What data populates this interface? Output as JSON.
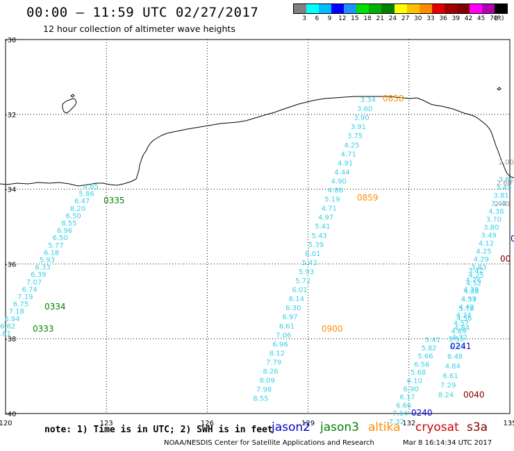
{
  "header": {
    "title": "00:00 – 11:59 UTC 02/27/2017",
    "subtitle": "12 hour collection of altimeter wave heights"
  },
  "colorbar": {
    "unit_label": "(ft)",
    "colors": [
      "#808080",
      "#00ffff",
      "#00bfff",
      "#0000ff",
      "#1e90ff",
      "#00e000",
      "#00b000",
      "#008000",
      "#ffff00",
      "#ffc000",
      "#ff8c00",
      "#e00000",
      "#a00000",
      "#800000",
      "#ff00ff",
      "#b000b0",
      "#000000"
    ],
    "tick_labels": [
      "3",
      "6",
      "9",
      "12",
      "15",
      "18",
      "21",
      "24",
      "27",
      "30",
      "33",
      "36",
      "39",
      "42",
      "45",
      "70"
    ]
  },
  "map": {
    "lon_labels": [
      "120",
      "123",
      "126",
      "129",
      "132",
      "135"
    ],
    "lat_labels": [
      "-30",
      "-32",
      "-34",
      "-36",
      "-38",
      "-40"
    ],
    "lon_range": [
      120,
      135
    ],
    "lat_range": [
      -40,
      -30
    ]
  },
  "tracks": {
    "track_0335": {
      "color": "#35d0e8",
      "values": [
        "4.85",
        "5.86",
        "6.47",
        "8.20",
        "6.50",
        "8.55",
        "6.96",
        "6.50",
        "5.77",
        "6.18",
        "5.93",
        "6.33",
        "6.39",
        "7.07",
        "6.74",
        "7.19",
        "6.75",
        "7.18",
        "6.94",
        "6.62",
        "6.61"
      ]
    },
    "track_0858": {
      "color": "#35d0e8",
      "values": [
        "3.34",
        "3.60",
        "3.90",
        "3.91",
        "3.75",
        "4.25",
        "4.71",
        "4.91",
        "4.44",
        "4.90",
        "4.88",
        "5.19",
        "4.71",
        "4.97",
        "5.41",
        "5.43",
        "5.39",
        "6.01",
        "5.42",
        "5.93",
        "5.72",
        "6.01",
        "6.14",
        "6.30",
        "6.97",
        "6.61",
        "7.06",
        "6.96",
        "8.12",
        "7.79",
        "8.26",
        "8.09",
        "7.98",
        "8.55"
      ]
    },
    "track_0241": {
      "color": "#35d0e8",
      "values": [
        "5.41",
        "5.82",
        "5.66",
        "6.56",
        "5.68",
        "6.10",
        "6.90",
        "6.17",
        "6.66",
        "7.14",
        "7.32"
      ]
    },
    "track_0040": {
      "color": "#35d0e8",
      "values": [
        "3.42",
        "4.76",
        "4.29",
        "4.37",
        "5.78",
        "4.56",
        "4.84",
        "4.72",
        "6.07",
        "6.48",
        "4.84",
        "6.61",
        "7.29",
        "8.24"
      ]
    },
    "track_east": {
      "color": "#35d0e8",
      "values": [
        "3.81",
        "3.45",
        "3.81",
        "3.43",
        "4.36",
        "3.70",
        "3.80",
        "3.49",
        "4.12",
        "4.25",
        "4.29",
        "3.83",
        "4.25",
        "4.52",
        "4.38",
        "4.59",
        "4.42",
        "4.34",
        "4.57",
        "4.69",
        "5.53"
      ]
    },
    "track_east_gray": {
      "color": "#999999",
      "values": [
        "2.00",
        "2.60",
        "2.40"
      ]
    }
  },
  "time_labels": [
    {
      "text": "0335",
      "color": "#008000"
    },
    {
      "text": "0334",
      "color": "#008000"
    },
    {
      "text": "0333",
      "color": "#008000"
    },
    {
      "text": "0858",
      "color": "#ff8c00"
    },
    {
      "text": "0859",
      "color": "#ff8c00"
    },
    {
      "text": "0900",
      "color": "#ff8c00"
    },
    {
      "text": "0241",
      "color": "#0000cc"
    },
    {
      "text": "0240",
      "color": "#0000cc"
    },
    {
      "text": "0040",
      "color": "#800000"
    },
    {
      "text": "0",
      "color": "#0000cc"
    },
    {
      "text": "00",
      "color": "#800000"
    }
  ],
  "footer": {
    "note": "note: 1) Time is in UTC; 2) SWH is in feet",
    "legend": [
      {
        "name": "jason2",
        "color": "#0000cc"
      },
      {
        "name": "jason3",
        "color": "#008000"
      },
      {
        "name": "altika",
        "color": "#ff8c00"
      },
      {
        "name": "cryosat",
        "color": "#cc0000"
      },
      {
        "name": "s3a",
        "color": "#800000"
      }
    ],
    "credit": "NOAA/NESDIS Center for Satellite Applications and Research",
    "generated": "Mar  8 16:14:34 UTC 2017"
  }
}
